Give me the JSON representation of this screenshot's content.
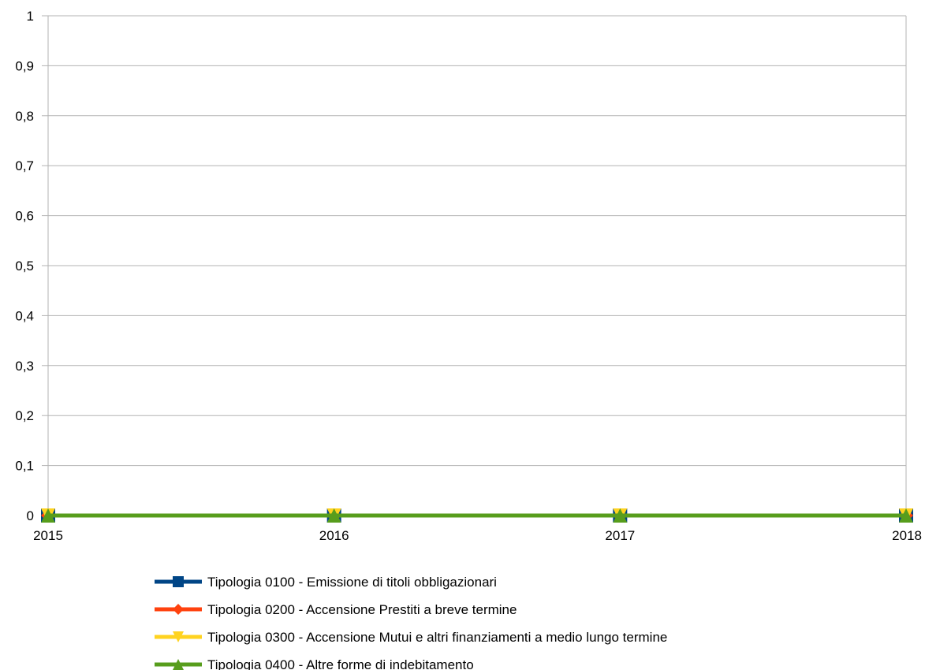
{
  "chart_data": {
    "type": "line",
    "title": "",
    "xlabel": "",
    "ylabel": "",
    "x": [
      "2015",
      "2016",
      "2017",
      "2018"
    ],
    "ylim": [
      0,
      1
    ],
    "yticks": [
      "0",
      "0,1",
      "0,2",
      "0,3",
      "0,4",
      "0,5",
      "0,6",
      "0,7",
      "0,8",
      "0,9",
      "1"
    ],
    "grid": true,
    "legend_position": "bottom",
    "series": [
      {
        "name": "Tipologia 0100 - Emissione di titoli obbligazionari",
        "values": [
          0,
          0,
          0,
          0
        ],
        "color": "#004586",
        "marker": "square"
      },
      {
        "name": "Tipologia 0200 - Accensione Prestiti a breve termine",
        "values": [
          0,
          0,
          0,
          0
        ],
        "color": "#ff420e",
        "marker": "diamond"
      },
      {
        "name": "Tipologia 0300 - Accensione Mutui e altri finanziamenti a medio lungo termine",
        "values": [
          0,
          0,
          0,
          0
        ],
        "color": "#ffd320",
        "marker": "triangle-down"
      },
      {
        "name": "Tipologia 0400 - Altre forme di indebitamento",
        "values": [
          0,
          0,
          0,
          0
        ],
        "color": "#579d1c",
        "marker": "triangle-up"
      }
    ]
  }
}
